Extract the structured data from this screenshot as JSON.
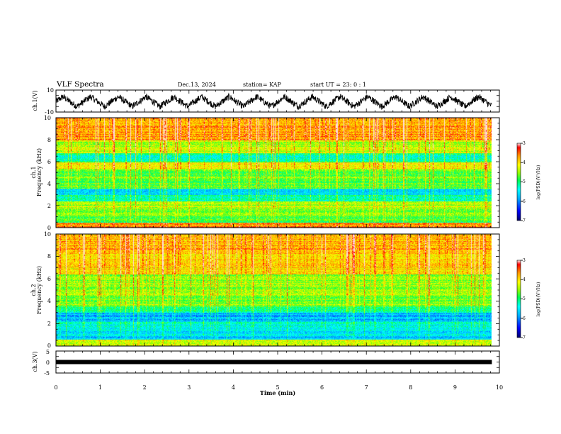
{
  "header": {
    "title": "VLF Spectra",
    "date": "Dec.13, 2024",
    "station": "station= KAP",
    "start_ut": "start UT =  23: 0  : 1"
  },
  "chart_data": [
    {
      "type": "line",
      "panel": "ch1-waveform",
      "ylabel": "ch.1(V)",
      "ylim": [
        -10,
        10
      ],
      "yticks": [
        "10",
        "-10"
      ],
      "xlim": [
        0,
        10
      ],
      "x_data_end": 9.83,
      "y_range_shown": [
        -8,
        7
      ],
      "periods_count": 16
    },
    {
      "type": "heatmap",
      "panel": "ch1-spectrogram",
      "ylabel": "ch.1\nFrequency (kHz)",
      "ylim": [
        0,
        10
      ],
      "yticks": [
        "0",
        "2",
        "4",
        "6",
        "8",
        "10"
      ],
      "xlim": [
        0,
        10
      ],
      "x_data_end": 9.83,
      "colorbar": {
        "label": "log(PSD)(V²/Hz)",
        "range": [
          -7,
          -3
        ],
        "ticks": [
          "-3",
          "-4",
          "-5",
          "-6",
          "-7"
        ]
      },
      "bands": [
        {
          "f": [
            0.0,
            0.5
          ],
          "level": -3.6
        },
        {
          "f": [
            0.5,
            1.0
          ],
          "level": -4.9
        },
        {
          "f": [
            1.0,
            1.8
          ],
          "level": -4.7
        },
        {
          "f": [
            1.8,
            2.4
          ],
          "level": -4.4
        },
        {
          "f": [
            2.4,
            3.0
          ],
          "level": -5.1
        },
        {
          "f": [
            3.0,
            3.6
          ],
          "level": -5.6
        },
        {
          "f": [
            3.6,
            4.2
          ],
          "level": -4.8
        },
        {
          "f": [
            4.2,
            5.4
          ],
          "level": -4.7
        },
        {
          "f": [
            5.4,
            6.0
          ],
          "level": -4.2
        },
        {
          "f": [
            6.0,
            6.8
          ],
          "level": -5.2
        },
        {
          "f": [
            6.8,
            8.0
          ],
          "level": -4.4
        },
        {
          "f": [
            8.0,
            10.0
          ],
          "level": -3.7
        }
      ]
    },
    {
      "type": "heatmap",
      "panel": "ch2-spectrogram",
      "ylabel": "ch.2\nFrequency (kHz)",
      "ylim": [
        0,
        10
      ],
      "yticks": [
        "0",
        "2",
        "4",
        "6",
        "8",
        "10"
      ],
      "xlim": [
        0,
        10
      ],
      "x_data_end": 9.83,
      "colorbar": {
        "label": "log(PSD)(V²/Hz)",
        "range": [
          -7,
          -3
        ],
        "ticks": [
          "-3",
          "-4",
          "-5",
          "-6",
          "-7"
        ]
      },
      "bands": [
        {
          "f": [
            0.0,
            0.6
          ],
          "level": -4.3
        },
        {
          "f": [
            0.6,
            1.4
          ],
          "level": -5.6
        },
        {
          "f": [
            1.4,
            2.2
          ],
          "level": -5.4
        },
        {
          "f": [
            2.2,
            3.0
          ],
          "level": -5.8
        },
        {
          "f": [
            3.0,
            3.6
          ],
          "level": -5.2
        },
        {
          "f": [
            3.6,
            4.4
          ],
          "level": -4.6
        },
        {
          "f": [
            4.4,
            6.4
          ],
          "level": -4.5
        },
        {
          "f": [
            6.4,
            8.4
          ],
          "level": -4.0
        },
        {
          "f": [
            8.4,
            10.0
          ],
          "level": -3.8
        }
      ]
    },
    {
      "type": "line",
      "panel": "ch3-waveform",
      "ylabel": "ch.3(V)",
      "ylim": [
        -5,
        5
      ],
      "yticks": [
        "5",
        "0",
        "-5"
      ],
      "xlim": [
        0,
        10
      ],
      "x_data_end": 9.83,
      "level": 0,
      "xlabel": "Time  (min)",
      "xticks": [
        "0",
        "1",
        "2",
        "3",
        "4",
        "5",
        "6",
        "7",
        "8",
        "9",
        "10"
      ]
    }
  ],
  "colors": {
    "frame": "#000000",
    "colormap": [
      "#00007f",
      "#0000ff",
      "#00a0ff",
      "#00ffff",
      "#00ff40",
      "#7fff00",
      "#ffff00",
      "#ffa000",
      "#ff0000",
      "#ffffff"
    ]
  }
}
